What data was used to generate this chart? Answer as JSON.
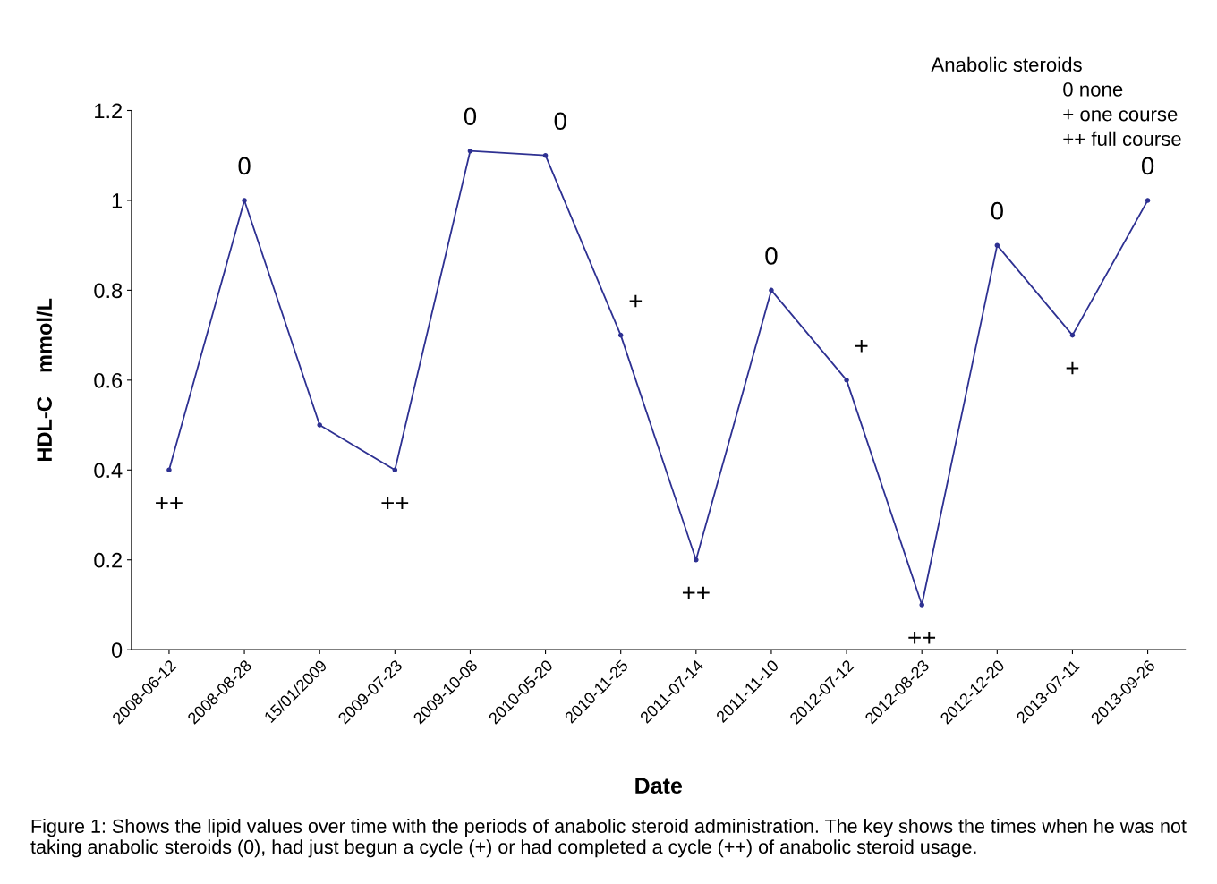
{
  "chart_data": {
    "type": "line",
    "xlabel": "Date",
    "ylabel": "HDL-C    mmol/L",
    "categories": [
      "2008-06-12",
      "2008-08-28",
      "15/01/2009",
      "2009-07-23",
      "2009-10-08",
      "2010-05-20",
      "2010-11-25",
      "2011-07-14",
      "2011-11-10",
      "2012-07-12",
      "2012-08-23",
      "2012-12-20",
      "2013-07-11",
      "2013-09-26"
    ],
    "series": [
      {
        "color": "#2e3192",
        "values": [
          0.4,
          1.0,
          0.5,
          0.4,
          1.11,
          1.1,
          0.7,
          0.2,
          0.8,
          0.6,
          0.1,
          0.9,
          0.7,
          1.0
        ]
      }
    ],
    "ylim": [
      0,
      1.2
    ],
    "yticks": [
      0,
      0.2,
      0.4,
      0.6,
      0.8,
      1,
      1.2
    ],
    "marker": "circle",
    "line_style": "solid",
    "grid": false,
    "legend": false,
    "annotations": [
      {
        "text": "++",
        "x": "2008-06-12",
        "y": 0.4
      },
      {
        "text": "0",
        "x": "2008-08-28",
        "y": 1.0
      },
      {
        "text": "++",
        "x": "2009-07-23",
        "y": 0.4
      },
      {
        "text": "0",
        "x": "2009-10-08",
        "y": 1.11
      },
      {
        "text": "0",
        "x": "2010-05-20",
        "y": 1.1
      },
      {
        "text": "+",
        "x": "2010-11-25",
        "y": 0.7
      },
      {
        "text": "++",
        "x": "2011-07-14",
        "y": 0.2
      },
      {
        "text": "0",
        "x": "2011-11-10",
        "y": 0.8
      },
      {
        "text": "+",
        "x": "2012-07-12",
        "y": 0.6
      },
      {
        "text": "++",
        "x": "2012-08-23",
        "y": 0.1
      },
      {
        "text": "0",
        "x": "2012-12-20",
        "y": 0.9
      },
      {
        "text": "+",
        "x": "2013-07-11",
        "y": 0.7
      },
      {
        "text": "0",
        "x": "2013-09-26",
        "y": 1.0
      },
      "Anabolic steroids",
      "0 none",
      "+ one course",
      "++ full course",
      "Figure 1: Shows the lipid values over time with the periods of anabolic steroid administration. The key shows the times when he was not taking anabolic steroids (0), had just begun a cycle (+) or had completed a cycle (++) of anabolic steroid usage."
    ]
  }
}
